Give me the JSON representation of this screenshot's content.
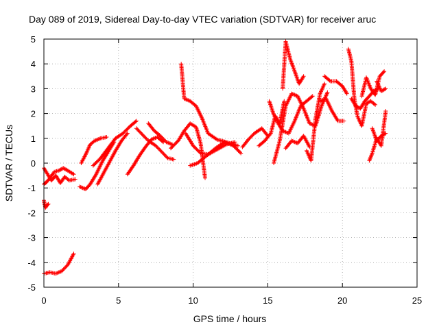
{
  "chart_data": {
    "type": "scatter",
    "title": "Day 089 of 2019, Sidereal Day-to-day VTEC variation (SDTVAR) for receiver aruc",
    "xlabel": "GPS time / hours",
    "ylabel": "SDTVAR / TECUs",
    "xlim": [
      0,
      25
    ],
    "ylim": [
      -5,
      5
    ],
    "xticks": [
      0,
      5,
      10,
      15,
      20,
      25
    ],
    "yticks": [
      -5,
      -4,
      -3,
      -2,
      -1,
      0,
      1,
      2,
      3,
      4,
      5
    ],
    "grid": true,
    "marker": "+",
    "series": [
      {
        "name": "SDTVAR",
        "color": "#ff0000",
        "segments": [
          {
            "x": [
              0.0,
              0.4,
              0.8,
              1.2,
              1.6,
              2.0
            ],
            "y": [
              -4.45,
              -4.4,
              -4.45,
              -4.35,
              -4.1,
              -3.65
            ]
          },
          {
            "x": [
              0.0,
              0.1,
              0.2,
              0.3
            ],
            "y": [
              -1.5,
              -1.8,
              -1.7,
              -1.65
            ]
          },
          {
            "x": [
              0.0,
              0.2,
              0.5,
              0.8,
              1.1,
              1.4,
              1.7,
              2.1
            ],
            "y": [
              -0.2,
              -0.4,
              -0.7,
              -0.5,
              -0.8,
              -0.55,
              -0.7,
              -0.65
            ]
          },
          {
            "x": [
              0.0,
              0.2,
              0.4,
              0.7,
              1.0,
              1.3,
              1.6,
              2.0
            ],
            "y": [
              -0.85,
              -0.75,
              -0.6,
              -0.35,
              -0.3,
              -0.2,
              -0.3,
              -0.45
            ]
          },
          {
            "x": [
              2.4,
              2.8,
              3.1,
              3.5,
              3.9,
              4.3,
              4.7
            ],
            "y": [
              -0.95,
              -1.05,
              -0.85,
              -0.45,
              0.05,
              0.45,
              0.85
            ]
          },
          {
            "x": [
              2.5,
              2.8,
              3.1,
              3.4,
              3.8,
              4.2
            ],
            "y": [
              0.0,
              0.35,
              0.75,
              0.9,
              1.0,
              1.05
            ]
          },
          {
            "x": [
              3.6,
              4.0,
              4.4,
              4.8,
              5.2,
              5.6
            ],
            "y": [
              -0.85,
              -0.4,
              0.05,
              0.5,
              0.9,
              1.2
            ]
          },
          {
            "x": [
              3.3,
              3.8,
              4.3,
              4.8,
              5.3,
              5.8,
              6.2
            ],
            "y": [
              -0.1,
              0.2,
              0.6,
              1.0,
              1.2,
              1.5,
              1.7
            ]
          },
          {
            "x": [
              5.6,
              6.0,
              6.4,
              6.8,
              7.2,
              7.6,
              8.0
            ],
            "y": [
              -0.45,
              -0.1,
              0.3,
              0.65,
              0.95,
              1.05,
              0.85
            ]
          },
          {
            "x": [
              6.2,
              6.6,
              7.0,
              7.5,
              7.9,
              8.3,
              8.7
            ],
            "y": [
              1.4,
              1.15,
              0.9,
              0.7,
              0.45,
              0.2,
              0.15
            ]
          },
          {
            "x": [
              7.0,
              7.4,
              7.8,
              8.2,
              8.6
            ],
            "y": [
              1.6,
              1.3,
              1.1,
              0.85,
              0.75
            ]
          },
          {
            "x": [
              8.5,
              9.0,
              9.4,
              9.8,
              10.2,
              10.5,
              10.8
            ],
            "y": [
              0.6,
              0.9,
              1.3,
              1.6,
              1.45,
              0.8,
              -0.6
            ]
          },
          {
            "x": [
              9.2,
              9.4,
              9.8,
              10.2,
              10.6,
              11.0,
              11.6,
              12.2,
              13.0
            ],
            "y": [
              4.0,
              2.6,
              2.5,
              2.3,
              1.8,
              1.2,
              0.95,
              0.85,
              0.7
            ]
          },
          {
            "x": [
              9.5,
              10.0,
              10.5,
              11.0,
              11.6,
              12.2,
              12.8
            ],
            "y": [
              1.2,
              0.7,
              0.4,
              0.35,
              0.55,
              0.75,
              0.85
            ]
          },
          {
            "x": [
              9.8,
              10.3,
              10.9,
              11.5,
              12.1,
              12.7,
              13.2
            ],
            "y": [
              -0.1,
              0.0,
              0.3,
              0.6,
              0.85,
              0.7,
              0.4
            ]
          },
          {
            "x": [
              13.3,
              13.7,
              14.1,
              14.6,
              15.0
            ],
            "y": [
              0.65,
              0.95,
              1.2,
              1.4,
              1.1
            ]
          },
          {
            "x": [
              14.4,
              14.8,
              15.2,
              15.5,
              15.8,
              16.1
            ],
            "y": [
              0.7,
              0.9,
              1.2,
              1.9,
              1.6,
              2.5
            ]
          },
          {
            "x": [
              15.1,
              15.4,
              15.7,
              16.0,
              16.4,
              16.8,
              17.2,
              17.6,
              18.0
            ],
            "y": [
              2.5,
              1.95,
              1.6,
              1.3,
              1.2,
              1.7,
              2.3,
              2.5,
              2.7
            ]
          },
          {
            "x": [
              15.4,
              15.8,
              16.2,
              16.6,
              17.0,
              17.4,
              17.8,
              18.2,
              18.6,
              19.0
            ],
            "y": [
              0.0,
              0.9,
              2.3,
              2.8,
              2.7,
              2.2,
              1.6,
              1.5,
              2.3,
              2.85
            ]
          },
          {
            "x": [
              16.0,
              16.2,
              16.5,
              16.8,
              17.1,
              17.4
            ],
            "y": [
              3.0,
              4.9,
              4.2,
              3.7,
              3.2,
              3.5
            ]
          },
          {
            "x": [
              16.2,
              16.6,
              17.0,
              17.4,
              17.8
            ],
            "y": [
              0.6,
              0.9,
              0.8,
              1.1,
              0.65
            ]
          },
          {
            "x": [
              17.6,
              17.9,
              18.2,
              18.5,
              18.8
            ],
            "y": [
              0.5,
              0.1,
              1.8,
              2.8,
              3.2
            ]
          },
          {
            "x": [
              18.8,
              19.2,
              19.6,
              20.0,
              20.3
            ],
            "y": [
              3.5,
              3.3,
              3.3,
              3.1,
              2.8
            ]
          },
          {
            "x": [
              18.5,
              18.9,
              19.3,
              19.7,
              20.1
            ],
            "y": [
              2.5,
              2.6,
              2.1,
              1.7,
              1.7
            ]
          },
          {
            "x": [
              20.4,
              20.6,
              20.8,
              21.0,
              21.3,
              21.6,
              21.9,
              22.2
            ],
            "y": [
              4.6,
              4.1,
              2.6,
              1.9,
              1.5,
              2.4,
              2.5,
              2.35
            ]
          },
          {
            "x": [
              20.6,
              20.9,
              21.2,
              21.5,
              21.8,
              22.1,
              22.4
            ],
            "y": [
              2.6,
              2.3,
              2.2,
              2.5,
              2.7,
              2.9,
              3.0
            ]
          },
          {
            "x": [
              21.3,
              21.6,
              21.9,
              22.2,
              22.5,
              22.8
            ],
            "y": [
              2.7,
              3.45,
              3.0,
              2.75,
              3.5,
              3.7
            ]
          },
          {
            "x": [
              21.8,
              22.0,
              22.3,
              22.6,
              22.9
            ],
            "y": [
              0.1,
              0.4,
              1.0,
              0.7,
              2.1
            ]
          },
          {
            "x": [
              22.0,
              22.3,
              22.6,
              22.9
            ],
            "y": [
              1.4,
              0.9,
              1.1,
              1.2
            ]
          },
          {
            "x": [
              22.3,
              22.6,
              22.9
            ],
            "y": [
              3.3,
              2.9,
              3.0
            ]
          }
        ]
      }
    ]
  }
}
